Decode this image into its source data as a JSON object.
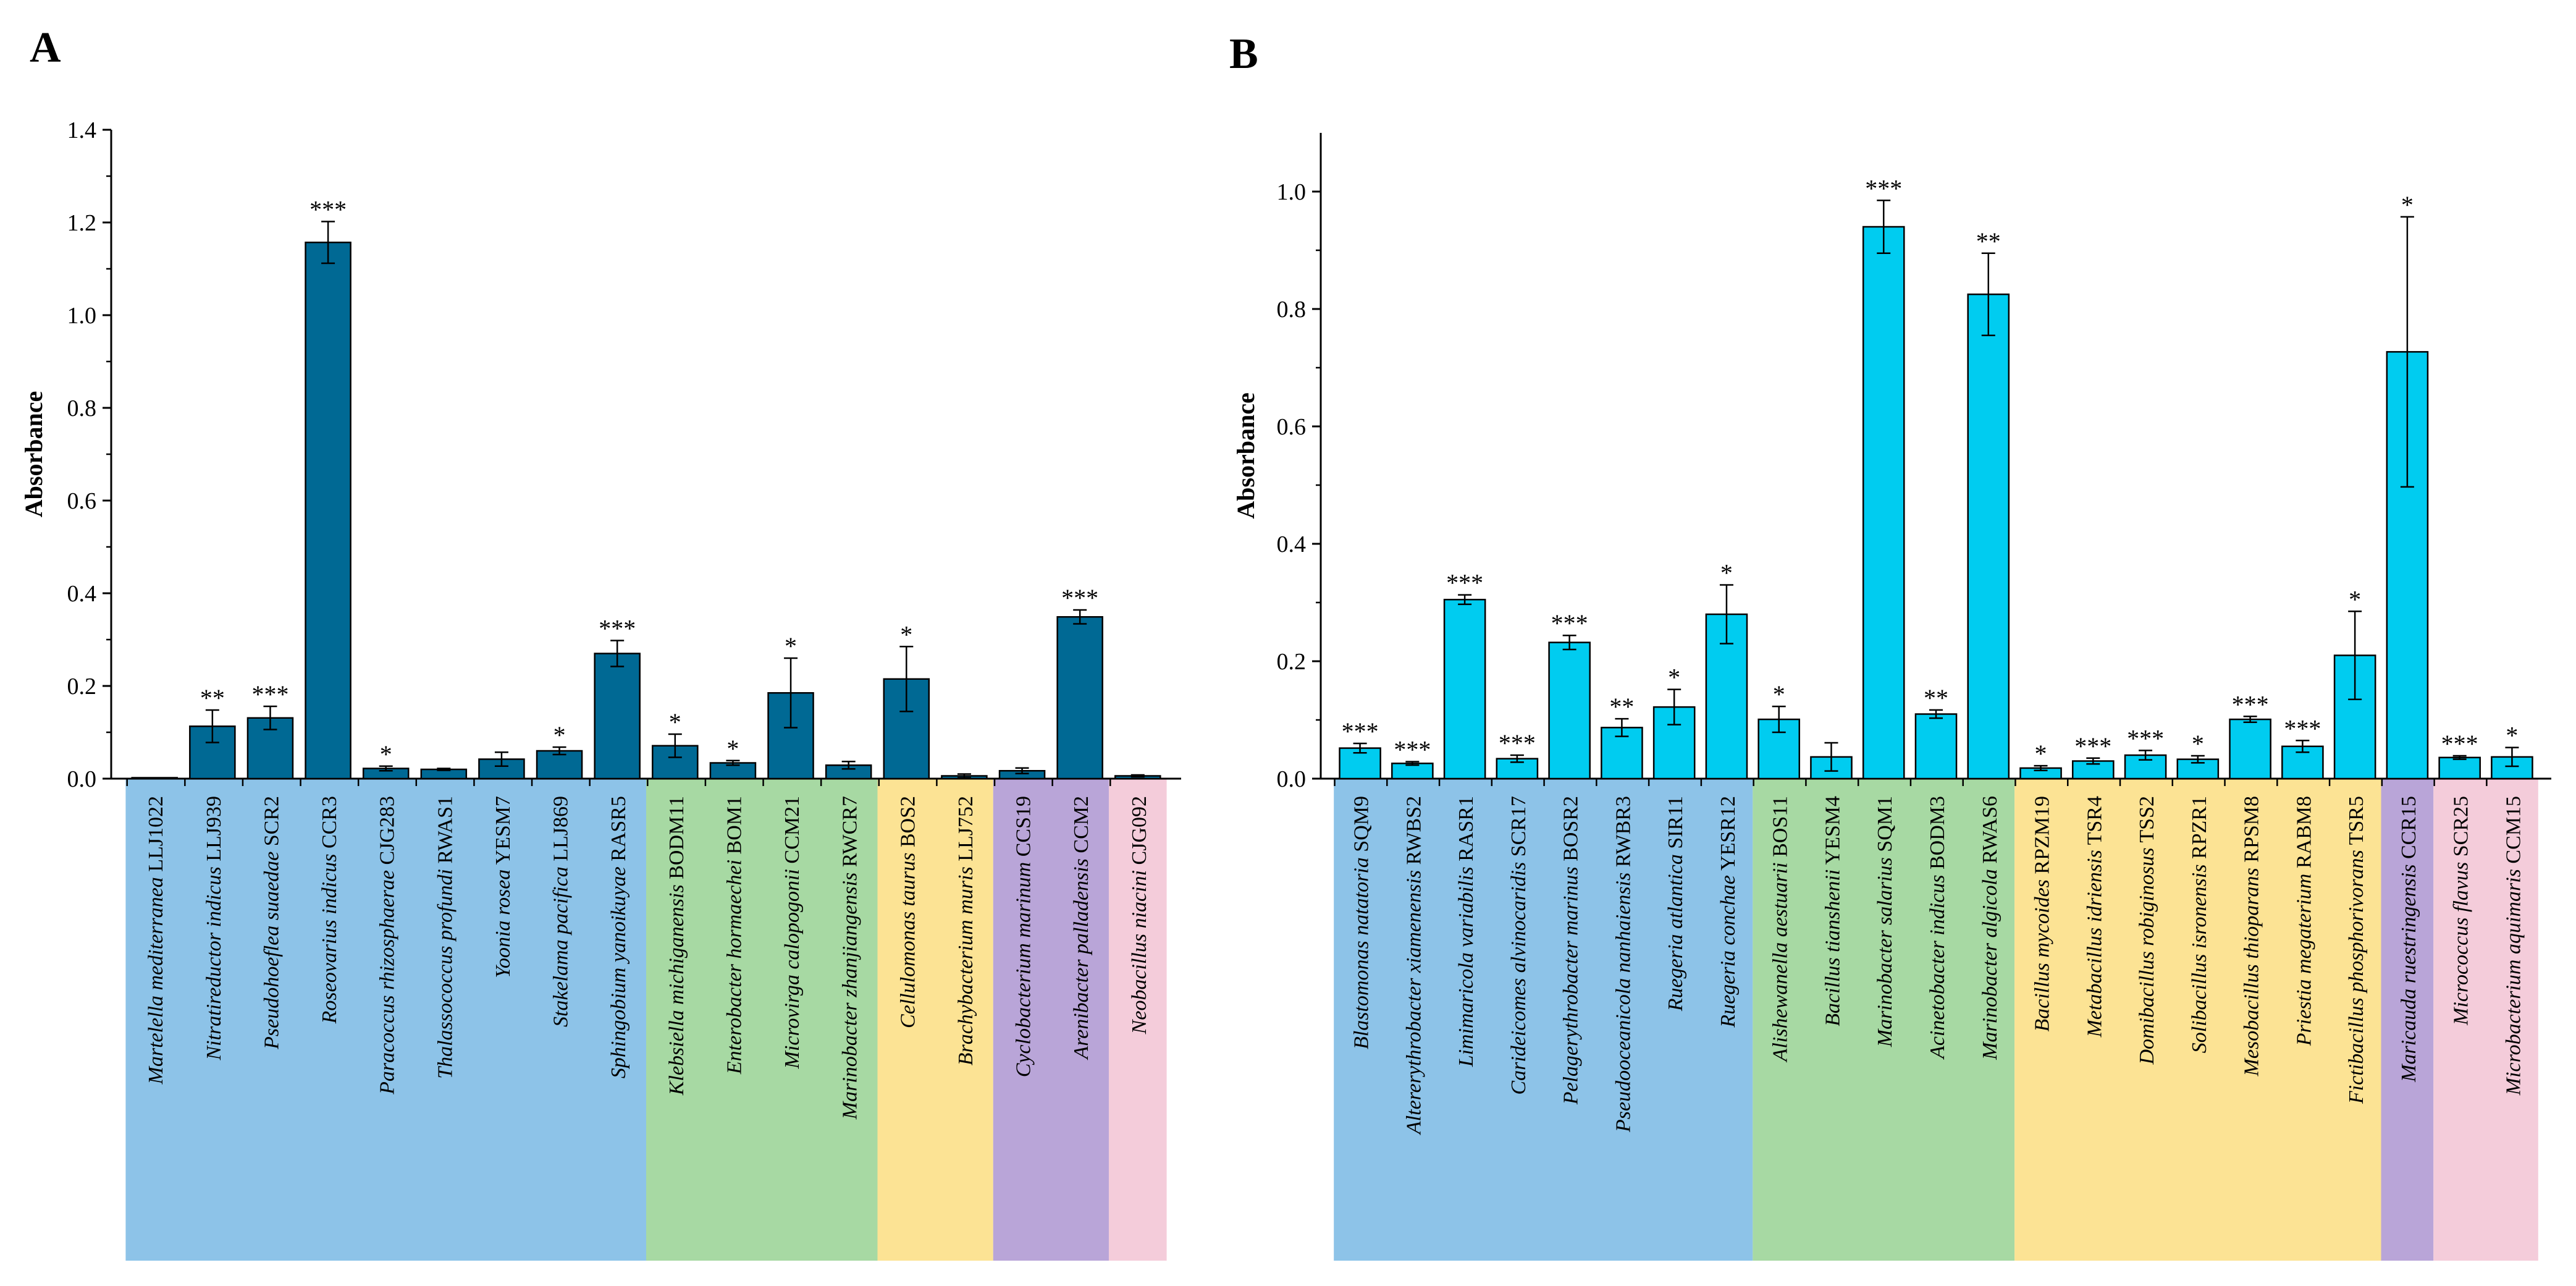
{
  "figure": {
    "panel_labels": [
      "A",
      "B"
    ]
  },
  "colors": {
    "panel_a_bar": "#006994",
    "panel_b_bar": "#00CCF0",
    "group_blue": "#8DC3E8",
    "group_green": "#A7D9A3",
    "group_yellow": "#FCE394",
    "group_purple": "#B9A5D8",
    "group_pink": "#F4CCDA"
  },
  "chart_data": [
    {
      "panel": "A",
      "type": "bar",
      "title": "",
      "xlabel": "",
      "ylabel": "Absorbance",
      "ylim": [
        0,
        1.4
      ],
      "yticks": [
        "0.0",
        "0.2",
        "0.4",
        "0.6",
        "0.8",
        "1.0",
        "1.2",
        "1.4"
      ],
      "grid": false,
      "bar_color": "#006994",
      "bars": [
        {
          "genus": "Martelella mediterranea",
          "strain": "LLJ1022",
          "value": 0.002,
          "error": 0,
          "sig": "",
          "group": "blue"
        },
        {
          "genus": "Nitratireductor indicus",
          "strain": "LLJ939",
          "value": 0.113,
          "error": 0.035,
          "sig": "**",
          "group": "blue"
        },
        {
          "genus": "Pseudohoeflea suaedae",
          "strain": "SCR2",
          "value": 0.131,
          "error": 0.025,
          "sig": "***",
          "group": "blue"
        },
        {
          "genus": "Roseovarius indicus",
          "strain": "CCR3",
          "value": 1.157,
          "error": 0.045,
          "sig": "***",
          "group": "blue"
        },
        {
          "genus": "Paracoccus rhizosphaerae",
          "strain": "CJG283",
          "value": 0.022,
          "error": 0.005,
          "sig": "*",
          "group": "blue"
        },
        {
          "genus": "Thalassococcus profundi",
          "strain": "RWAS1",
          "value": 0.02,
          "error": 0.002,
          "sig": "",
          "group": "blue"
        },
        {
          "genus": "Yoonia rosea",
          "strain": "YESM7",
          "value": 0.042,
          "error": 0.015,
          "sig": "",
          "group": "blue"
        },
        {
          "genus": "Stakelama pacifica",
          "strain": "LLJ869",
          "value": 0.06,
          "error": 0.008,
          "sig": "*",
          "group": "blue"
        },
        {
          "genus": "Sphingobium yanoikuyae",
          "strain": "RASR5",
          "value": 0.27,
          "error": 0.028,
          "sig": "***",
          "group": "blue"
        },
        {
          "genus": "Klebsiella michiganensis",
          "strain": "BODM11",
          "value": 0.071,
          "error": 0.025,
          "sig": "*",
          "group": "green"
        },
        {
          "genus": "Enterobacter hormaechei",
          "strain": "BOM1",
          "value": 0.034,
          "error": 0.005,
          "sig": "*",
          "group": "green"
        },
        {
          "genus": "Microvirga  calopogonii",
          "strain": "CCM21",
          "value": 0.185,
          "error": 0.075,
          "sig": "*",
          "group": "green"
        },
        {
          "genus": "Marinobacter zhanjiangensis",
          "strain": "RWCR7",
          "value": 0.029,
          "error": 0.008,
          "sig": "",
          "group": "green"
        },
        {
          "genus": "Cellulomonas taurus",
          "strain": "BOS2",
          "value": 0.215,
          "error": 0.07,
          "sig": "*",
          "group": "yellow"
        },
        {
          "genus": "Brachybacterium muris",
          "strain": "LLJ752",
          "value": 0.006,
          "error": 0.004,
          "sig": "",
          "group": "yellow"
        },
        {
          "genus": "Cyclobacterium marinum",
          "strain": "CCS19",
          "value": 0.017,
          "error": 0.006,
          "sig": "",
          "group": "purple"
        },
        {
          "genus": "Arenibacter palladensis",
          "strain": "CCM2",
          "value": 0.349,
          "error": 0.015,
          "sig": "***",
          "group": "purple"
        },
        {
          "genus": "Neobacillus niacini",
          "strain": "CJG092",
          "value": 0.006,
          "error": 0.002,
          "sig": "",
          "group": "pink"
        }
      ]
    },
    {
      "panel": "B",
      "type": "bar",
      "title": "",
      "xlabel": "",
      "ylabel": "Absorbance",
      "ylim": [
        0,
        1.1
      ],
      "yticks": [
        "0.0",
        "0.2",
        "0.4",
        "0.6",
        "0.8",
        "1.0"
      ],
      "grid": false,
      "bar_color": "#00CCF0",
      "bars": [
        {
          "genus": "Blastomonas natatoria",
          "strain": "SQM9",
          "value": 0.052,
          "error": 0.008,
          "sig": "***",
          "group": "blue"
        },
        {
          "genus": "Altererythrobacter xiamenensis",
          "strain": "RWBS2",
          "value": 0.026,
          "error": 0.003,
          "sig": "***",
          "group": "blue"
        },
        {
          "genus": "Limimaricola variabilis",
          "strain": "RASR1",
          "value": 0.305,
          "error": 0.008,
          "sig": "***",
          "group": "blue"
        },
        {
          "genus": "Carideicomes alvinocaridis",
          "strain": "SCR17",
          "value": 0.034,
          "error": 0.006,
          "sig": "***",
          "group": "blue"
        },
        {
          "genus": "Pelagerythrobacter marinus",
          "strain": "BOSR2",
          "value": 0.232,
          "error": 0.012,
          "sig": "***",
          "group": "blue"
        },
        {
          "genus": "Pseudooceanicola nanhaiensis",
          "strain": "RWBR3",
          "value": 0.087,
          "error": 0.015,
          "sig": "**",
          "group": "blue"
        },
        {
          "genus": "Ruegeria atlantica",
          "strain": "SIR11",
          "value": 0.122,
          "error": 0.03,
          "sig": "*",
          "group": "blue"
        },
        {
          "genus": "Ruegeria conchae",
          "strain": "YESR12",
          "value": 0.28,
          "error": 0.05,
          "sig": "*",
          "group": "blue"
        },
        {
          "genus": "Alishewanella aestuarii",
          "strain": "BOS11",
          "value": 0.101,
          "error": 0.022,
          "sig": "*",
          "group": "green"
        },
        {
          "genus": "Bacillus tianshenii",
          "strain": "YESM4",
          "value": 0.037,
          "error": 0.024,
          "sig": "",
          "group": "green"
        },
        {
          "genus": "Marinobacter salarius",
          "strain": "SQM1",
          "value": 0.94,
          "error": 0.045,
          "sig": "***",
          "group": "green"
        },
        {
          "genus": "Acinetobacter indicus",
          "strain": "BODM3",
          "value": 0.11,
          "error": 0.007,
          "sig": "**",
          "group": "green"
        },
        {
          "genus": "Marinobacter algicola",
          "strain": "RWAS6",
          "value": 0.825,
          "error": 0.07,
          "sig": "**",
          "group": "green"
        },
        {
          "genus": "Bacillus mycoides",
          "strain": "RPZM19",
          "value": 0.018,
          "error": 0.004,
          "sig": "*",
          "group": "yellow"
        },
        {
          "genus": "Metabacillus idriensis",
          "strain": "TSR4",
          "value": 0.03,
          "error": 0.005,
          "sig": "***",
          "group": "yellow"
        },
        {
          "genus": "Domibacillus robiginosus",
          "strain": "TSS2",
          "value": 0.04,
          "error": 0.008,
          "sig": "***",
          "group": "yellow"
        },
        {
          "genus": "Solibacillus isronensis",
          "strain": "RPZR1",
          "value": 0.033,
          "error": 0.006,
          "sig": "*",
          "group": "yellow"
        },
        {
          "genus": "Mesobacillus thioparans",
          "strain": "RPSM8",
          "value": 0.101,
          "error": 0.005,
          "sig": "***",
          "group": "yellow"
        },
        {
          "genus": "Priestia megaterium",
          "strain": "RABM8",
          "value": 0.055,
          "error": 0.01,
          "sig": "***",
          "group": "yellow"
        },
        {
          "genus": "Fictibacillus phosphorivorans",
          "strain": "TSR5",
          "value": 0.21,
          "error": 0.075,
          "sig": "*",
          "group": "yellow"
        },
        {
          "genus": "Maricauda ruestringensis",
          "strain": "CCR15",
          "value": 0.727,
          "error": 0.23,
          "sig": "*",
          "group": "purple"
        },
        {
          "genus": "Micrococcus flavus",
          "strain": "SCR25",
          "value": 0.036,
          "error": 0.003,
          "sig": "***",
          "group": "pink"
        },
        {
          "genus": "Microbacterium aquimaris",
          "strain": "CCM15",
          "value": 0.037,
          "error": 0.016,
          "sig": "*",
          "group": "pink"
        }
      ]
    }
  ]
}
